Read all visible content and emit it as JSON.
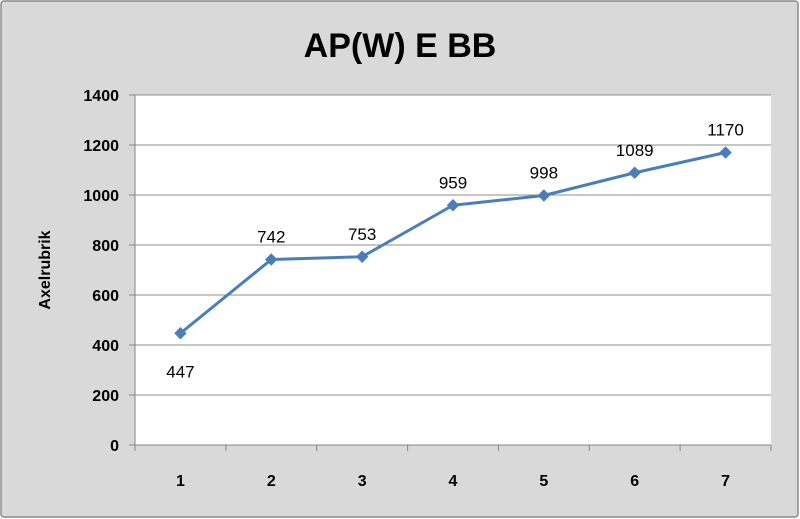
{
  "chart_data": {
    "type": "line",
    "title": "AP(W) E BB",
    "xlabel": "",
    "ylabel": "Axelrubrik",
    "categories": [
      "1",
      "2",
      "3",
      "4",
      "5",
      "6",
      "7"
    ],
    "series": [
      {
        "values": [
          447,
          742,
          753,
          959,
          998,
          1089,
          1170
        ]
      }
    ],
    "data_labels": [
      "447",
      "742",
      "753",
      "959",
      "998",
      "1089",
      "1170"
    ],
    "ylim": [
      0,
      1400
    ],
    "yticks": [
      0,
      200,
      400,
      600,
      800,
      1000,
      1200,
      1400
    ],
    "ytick_labels": [
      "0",
      "200",
      "400",
      "600",
      "800",
      "1000",
      "1200",
      "1400"
    ],
    "grid": true,
    "legend": "none",
    "colors": {
      "background": "#d9d9d9",
      "plot_area": "#ffffff",
      "gridline": "#8c8c8c",
      "series": "#4a7ebb"
    }
  }
}
